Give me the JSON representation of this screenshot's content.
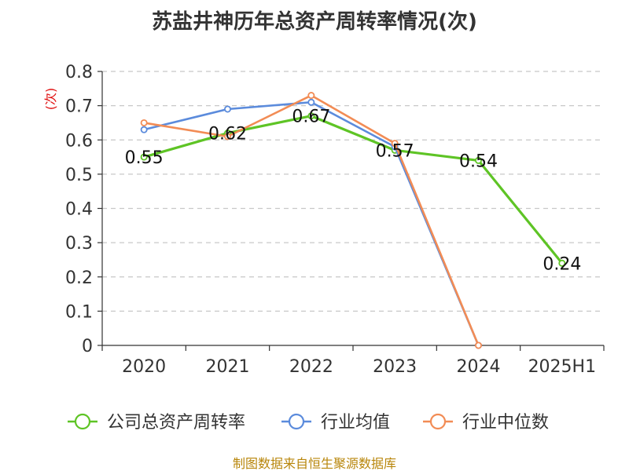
{
  "chart_data": {
    "type": "line",
    "title": "苏盐井神历年总资产周转率情况(次)",
    "ylabel": "(次)",
    "categories": [
      "2020",
      "2021",
      "2022",
      "2023",
      "2024",
      "2025H1"
    ],
    "ylim": [
      0,
      0.8
    ],
    "yticks": [
      "0",
      "0.1",
      "0.2",
      "0.3",
      "0.4",
      "0.5",
      "0.6",
      "0.7",
      "0.8"
    ],
    "grid": true,
    "legend_position": "bottom",
    "series": [
      {
        "name": "公司总资产周转率",
        "color": "#5ec425",
        "values": [
          0.55,
          0.62,
          0.67,
          0.57,
          0.54,
          0.24
        ],
        "labels": [
          "0.55",
          "0.62",
          "0.67",
          "0.57",
          "0.54",
          "0.24"
        ]
      },
      {
        "name": "行业均值",
        "color": "#5b8bdc",
        "values": [
          0.63,
          0.69,
          0.71,
          0.58,
          0,
          null
        ]
      },
      {
        "name": "行业中位数",
        "color": "#f28c55",
        "values": [
          0.65,
          0.61,
          0.73,
          0.59,
          0,
          null
        ]
      }
    ]
  },
  "source": "制图数据来自恒生聚源数据库"
}
